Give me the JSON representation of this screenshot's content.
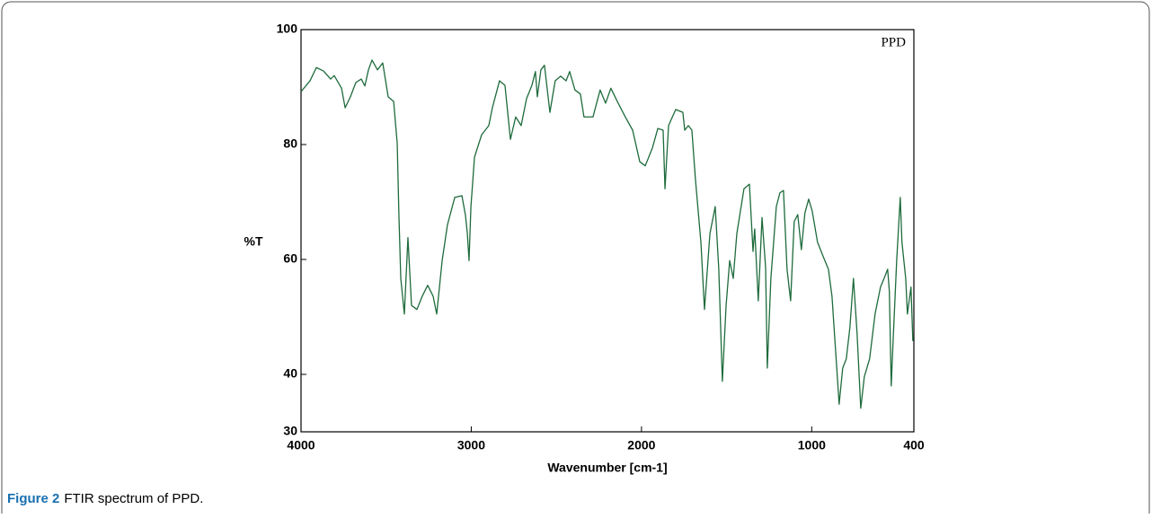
{
  "chart_data": {
    "type": "line",
    "annotation": "PPD",
    "x_label": "Wavenumber [cm-1]",
    "y_label": "%T",
    "color": "#1e6b3c",
    "xlim": [
      4000,
      400
    ],
    "xticks": [
      4000,
      3000,
      2000,
      1000,
      400
    ],
    "ylim": [
      30,
      100
    ],
    "yticks": [
      30,
      40,
      60,
      80,
      100
    ],
    "x": [
      4000,
      3947,
      3910,
      3868,
      3826,
      3805,
      3762,
      3741,
      3710,
      3678,
      3646,
      3625,
      3604,
      3583,
      3551,
      3520,
      3488,
      3456,
      3435,
      3425,
      3414,
      3393,
      3372,
      3351,
      3319,
      3288,
      3256,
      3224,
      3203,
      3171,
      3140,
      3097,
      3055,
      3034,
      3023,
      3013,
      3002,
      2981,
      2939,
      2897,
      2876,
      2834,
      2802,
      2770,
      2739,
      2707,
      2675,
      2644,
      2623,
      2612,
      2591,
      2570,
      2538,
      2507,
      2475,
      2443,
      2422,
      2391,
      2359,
      2338,
      2285,
      2243,
      2211,
      2180,
      2137,
      2095,
      2052,
      2010,
      1978,
      1936,
      1904,
      1873,
      1862,
      1841,
      1799,
      1757,
      1746,
      1725,
      1704,
      1683,
      1651,
      1630,
      1598,
      1567,
      1546,
      1525,
      1503,
      1482,
      1461,
      1440,
      1398,
      1366,
      1345,
      1335,
      1314,
      1292,
      1271,
      1261,
      1240,
      1208,
      1187,
      1166,
      1145,
      1124,
      1103,
      1082,
      1061,
      1040,
      1018,
      997,
      966,
      934,
      902,
      881,
      860,
      839,
      818,
      797,
      776,
      755,
      734,
      712,
      691,
      660,
      628,
      596,
      575,
      554,
      544,
      533,
      522,
      501,
      480,
      470,
      448,
      438,
      417,
      406
    ],
    "values": [
      89.2,
      91.1,
      93.4,
      92.8,
      91.4,
      92,
      89.8,
      86.4,
      88.3,
      90.8,
      91.4,
      90.2,
      93,
      94.7,
      93,
      94.2,
      88.3,
      87.5,
      80.2,
      67.7,
      56.7,
      50.5,
      63.8,
      52,
      51.3,
      53.6,
      55.5,
      53.6,
      50.5,
      59.8,
      66,
      70.8,
      71.1,
      67.7,
      64.5,
      59.8,
      69.2,
      77.8,
      81.7,
      83.3,
      86.4,
      91.1,
      90.3,
      80.9,
      84.8,
      83.3,
      88,
      90.3,
      92.7,
      88.3,
      93,
      93.8,
      85.6,
      91.1,
      91.9,
      91.1,
      92.7,
      89.5,
      88.8,
      84.8,
      84.8,
      89.5,
      87.2,
      89.8,
      87.2,
      84.8,
      82.5,
      77,
      76.3,
      79.4,
      82.8,
      82.5,
      72.3,
      83.3,
      86.1,
      85.6,
      82.5,
      83.3,
      82.5,
      73.9,
      63,
      51.3,
      64.5,
      69.2,
      58.3,
      38.8,
      52,
      59.8,
      56.7,
      64.5,
      72.3,
      73.1,
      61.4,
      65.3,
      52.8,
      67.3,
      58.6,
      41.1,
      56.7,
      69.2,
      71.6,
      72,
      58.3,
      52.8,
      66.6,
      67.8,
      61.7,
      68.1,
      70.5,
      68.4,
      63,
      60.6,
      58.3,
      53.6,
      44.2,
      34.8,
      41.1,
      42.7,
      48.1,
      56.7,
      47.3,
      34.1,
      39.6,
      42.7,
      50.5,
      55.2,
      56.7,
      58.3,
      54.4,
      38,
      45.8,
      59.8,
      70.8,
      63,
      56.7,
      50.5,
      55.2,
      45.8
    ]
  },
  "caption": {
    "label": "Figure 2",
    "text": "FTIR spectrum of PPD."
  }
}
